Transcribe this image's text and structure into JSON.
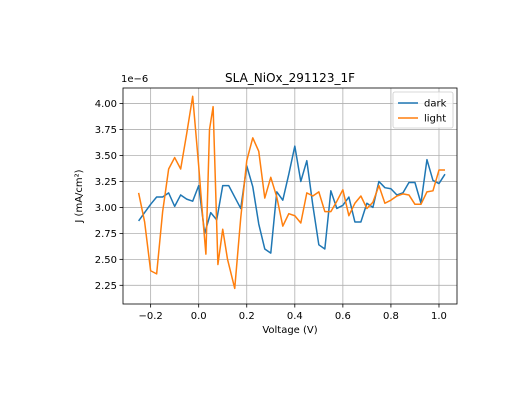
{
  "chart_data": {
    "type": "line",
    "title": "SLA_NiOx_291123_1F",
    "xlabel": "Voltage (V)",
    "ylabel": "J (mA/cm²)",
    "y_offset_label": "1e−6",
    "y_scale": 1e-06,
    "xlim": [
      -0.315,
      1.075
    ],
    "ylim": [
      2.07,
      4.15
    ],
    "x_ticks": [
      -0.2,
      0.0,
      0.2,
      0.4,
      0.6,
      0.8,
      1.0
    ],
    "x_tick_labels": [
      "−0.2",
      "0.0",
      "0.2",
      "0.4",
      "0.6",
      "0.8",
      "1.0"
    ],
    "y_ticks": [
      2.25,
      2.5,
      2.75,
      3.0,
      3.25,
      3.5,
      3.75,
      4.0
    ],
    "y_tick_labels": [
      "2.25",
      "2.50",
      "2.75",
      "3.00",
      "3.25",
      "3.50",
      "3.75",
      "4.00"
    ],
    "grid": true,
    "legend_position": "top-right",
    "series": [
      {
        "name": "dark",
        "color": "#1f77b4",
        "x": [
          -0.25,
          -0.225,
          -0.2,
          -0.175,
          -0.15,
          -0.125,
          -0.1,
          -0.075,
          -0.05,
          -0.025,
          0.0,
          0.025,
          0.05,
          0.075,
          0.1,
          0.125,
          0.15,
          0.175,
          0.2,
          0.225,
          0.25,
          0.275,
          0.3,
          0.325,
          0.35,
          0.375,
          0.4,
          0.425,
          0.45,
          0.475,
          0.5,
          0.525,
          0.55,
          0.575,
          0.6,
          0.625,
          0.65,
          0.675,
          0.7,
          0.725,
          0.75,
          0.775,
          0.8,
          0.825,
          0.85,
          0.875,
          0.9,
          0.925,
          0.95,
          0.975,
          1.0,
          1.025
        ],
        "y": [
          2.87,
          2.95,
          3.03,
          3.1,
          3.1,
          3.14,
          3.01,
          3.12,
          3.08,
          3.06,
          3.21,
          2.75,
          2.95,
          2.88,
          3.21,
          3.21,
          3.1,
          2.99,
          3.4,
          3.2,
          2.84,
          2.6,
          2.56,
          3.15,
          3.07,
          3.32,
          3.59,
          3.25,
          3.45,
          3.02,
          2.64,
          2.6,
          3.16,
          2.99,
          3.02,
          3.1,
          2.86,
          2.86,
          3.04,
          3.0,
          3.25,
          3.19,
          3.18,
          3.12,
          3.14,
          3.24,
          3.24,
          3.04,
          3.46,
          3.26,
          3.23,
          3.32
        ]
      },
      {
        "name": "light",
        "color": "#ff7f0e",
        "x": [
          -0.25,
          -0.225,
          -0.2,
          -0.175,
          -0.15,
          -0.125,
          -0.1,
          -0.075,
          -0.05,
          -0.025,
          0.0,
          0.015,
          0.03,
          0.045,
          0.06,
          0.08,
          0.1,
          0.12,
          0.15,
          0.175,
          0.2,
          0.225,
          0.25,
          0.275,
          0.3,
          0.325,
          0.35,
          0.375,
          0.4,
          0.425,
          0.45,
          0.475,
          0.5,
          0.525,
          0.55,
          0.575,
          0.6,
          0.625,
          0.65,
          0.675,
          0.7,
          0.725,
          0.75,
          0.775,
          0.8,
          0.825,
          0.85,
          0.875,
          0.9,
          0.925,
          0.95,
          0.975,
          1.0,
          1.025
        ],
        "y": [
          3.14,
          2.86,
          2.39,
          2.36,
          2.96,
          3.37,
          3.48,
          3.37,
          3.71,
          4.07,
          3.4,
          2.96,
          2.55,
          3.75,
          3.97,
          2.45,
          2.79,
          2.5,
          2.22,
          2.9,
          3.45,
          3.67,
          3.54,
          3.09,
          3.29,
          3.1,
          2.82,
          2.94,
          2.92,
          2.85,
          3.14,
          3.11,
          3.15,
          2.96,
          2.96,
          3.06,
          3.17,
          2.92,
          3.04,
          3.11,
          2.99,
          3.05,
          3.21,
          3.04,
          3.07,
          3.11,
          3.13,
          3.12,
          3.03,
          3.03,
          3.15,
          3.16,
          3.36,
          3.36
        ]
      }
    ]
  }
}
